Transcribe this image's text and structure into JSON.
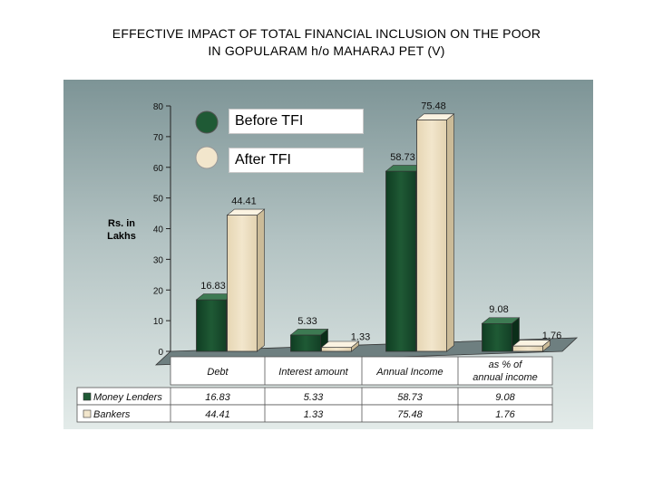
{
  "title_line1": "EFFECTIVE IMPACT OF TOTAL FINANCIAL INCLUSION ON THE POOR",
  "title_line2": "IN GOPULARAM h/o MAHARAJ PET (V)",
  "legend": {
    "before": "Before TFI",
    "after": "After TFI"
  },
  "colors": {
    "money_lenders": "#1f5a35",
    "bankers": "#f2e6cc",
    "panel_top": "#7d9496",
    "panel_bottom": "#e3ebe9"
  },
  "chart_data": {
    "type": "bar",
    "title": "EFFECTIVE IMPACT OF TOTAL FINANCIAL INCLUSION ON THE POOR IN GOPULARAM h/o MAHARAJ PET (V)",
    "ylabel_line1": "Rs. in",
    "ylabel_line2": "Lakhs",
    "ylim": [
      0,
      80
    ],
    "yticks": [
      0,
      10,
      20,
      30,
      40,
      50,
      60,
      70,
      80
    ],
    "categories": [
      "Debt",
      "Interest amount",
      "Annual Income",
      "as % of annual income"
    ],
    "series": [
      {
        "name": "Money Lenders",
        "values": [
          16.83,
          5.33,
          58.73,
          9.08
        ],
        "labels": [
          "16.83",
          "5.33",
          "58.73",
          "9.08"
        ]
      },
      {
        "name": "Bankers",
        "values": [
          44.41,
          1.33,
          75.48,
          1.76
        ],
        "labels": [
          "44.41",
          "1.33",
          "75.48",
          "1.76"
        ]
      }
    ],
    "table": {
      "rows": [
        {
          "name": "Money Lenders",
          "cells": [
            "16.83",
            "5.33",
            "58.73",
            "9.08"
          ]
        },
        {
          "name": "Bankers",
          "cells": [
            "44.41",
            "1.33",
            "75.48",
            "1.76"
          ]
        }
      ]
    }
  }
}
